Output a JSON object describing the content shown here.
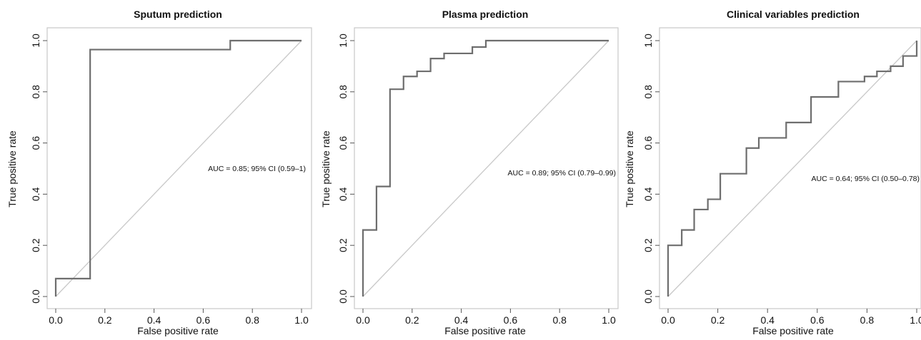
{
  "chart_data": [
    {
      "type": "line",
      "title": "Sputum prediction",
      "xlabel": "False positive rate",
      "ylabel": "True positive rate",
      "xlim": [
        0,
        1
      ],
      "ylim": [
        0,
        1
      ],
      "x_ticks": [
        "0.0",
        "0.2",
        "0.4",
        "0.6",
        "0.8",
        "1.0"
      ],
      "y_ticks": [
        "0.0",
        "0.2",
        "0.4",
        "0.6",
        "0.8",
        "1.0"
      ],
      "annotation": "AUC = 0.85; 95% CI (0.59–1)",
      "series": [
        {
          "x": [
            0,
            0,
            0.14,
            0.14,
            0.71,
            0.71,
            1.0
          ],
          "y": [
            0,
            0.07,
            0.07,
            0.965,
            0.965,
            1.0,
            1.0
          ]
        },
        {
          "x": [
            0,
            1
          ],
          "y": [
            0,
            1
          ]
        }
      ]
    },
    {
      "type": "line",
      "title": "Plasma prediction",
      "xlabel": "False positive rate",
      "ylabel": "True positive rate",
      "xlim": [
        0,
        1
      ],
      "ylim": [
        0,
        1
      ],
      "x_ticks": [
        "0.0",
        "0.2",
        "0.4",
        "0.6",
        "0.8",
        "1.0"
      ],
      "y_ticks": [
        "0.0",
        "0.2",
        "0.4",
        "0.6",
        "0.8",
        "1.0"
      ],
      "annotation": "AUC = 0.89; 95% CI (0.79–0.99)",
      "series": [
        {
          "x": [
            0,
            0,
            0.055,
            0.055,
            0.11,
            0.11,
            0.165,
            0.165,
            0.22,
            0.22,
            0.275,
            0.275,
            0.33,
            0.33,
            0.445,
            0.445,
            0.5,
            0.5,
            1.0
          ],
          "y": [
            0,
            0.26,
            0.26,
            0.43,
            0.43,
            0.81,
            0.81,
            0.86,
            0.86,
            0.88,
            0.88,
            0.93,
            0.93,
            0.95,
            0.95,
            0.975,
            0.975,
            1.0,
            1.0
          ]
        },
        {
          "x": [
            0,
            1
          ],
          "y": [
            0,
            1
          ]
        }
      ]
    },
    {
      "type": "line",
      "title": "Clinical variables prediction",
      "xlabel": "False positive rate",
      "ylabel": "True positive rate",
      "xlim": [
        0,
        1
      ],
      "ylim": [
        0,
        1
      ],
      "x_ticks": [
        "0.0",
        "0.2",
        "0.4",
        "0.6",
        "0.8",
        "1.0"
      ],
      "y_ticks": [
        "0.0",
        "0.2",
        "0.4",
        "0.6",
        "0.8",
        "1.0"
      ],
      "annotation": "AUC = 0.64; 95% CI (0.50–0.78)",
      "series": [
        {
          "x": [
            0,
            0,
            0.055,
            0.055,
            0.105,
            0.105,
            0.16,
            0.16,
            0.21,
            0.21,
            0.315,
            0.315,
            0.365,
            0.365,
            0.475,
            0.475,
            0.575,
            0.575,
            0.685,
            0.685,
            0.79,
            0.79,
            0.84,
            0.84,
            0.895,
            0.895,
            0.945,
            0.945,
            1.0,
            1.0
          ],
          "y": [
            0,
            0.2,
            0.2,
            0.26,
            0.26,
            0.34,
            0.34,
            0.38,
            0.38,
            0.48,
            0.48,
            0.58,
            0.58,
            0.62,
            0.62,
            0.68,
            0.68,
            0.78,
            0.78,
            0.84,
            0.84,
            0.86,
            0.86,
            0.88,
            0.88,
            0.9,
            0.9,
            0.94,
            0.94,
            1.0
          ]
        },
        {
          "x": [
            0,
            1
          ],
          "y": [
            0,
            1
          ]
        }
      ]
    }
  ],
  "colors": {
    "roc_line": "#6e6e6e",
    "diagonal": "#c8c8c8",
    "frame": "#c8c8c8",
    "text": "#111111"
  }
}
